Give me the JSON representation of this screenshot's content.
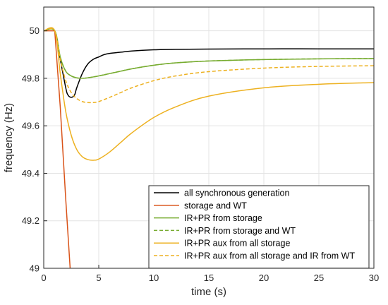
{
  "chart_data": {
    "type": "line",
    "title": "",
    "xlabel": "time (s)",
    "ylabel": "frequency (Hz)",
    "xlim": [
      0,
      30
    ],
    "ylim": [
      49,
      50.1
    ],
    "xticks": [
      0,
      5,
      10,
      15,
      20,
      25,
      30
    ],
    "yticks": [
      49,
      49.2,
      49.4,
      49.6,
      49.8,
      50
    ],
    "xtick_labels": [
      "0",
      "5",
      "10",
      "15",
      "20",
      "25",
      "30"
    ],
    "ytick_labels": [
      "49",
      "49.2",
      "49.4",
      "49.6",
      "49.8",
      "50"
    ],
    "grid": true,
    "legend_position": "bottom-right",
    "series": [
      {
        "name": "all synchronous generation",
        "color": "#000000",
        "dash": "solid",
        "x": [
          0,
          1,
          1.5,
          2,
          2.2,
          2.5,
          2.8,
          3,
          3.5,
          4,
          4.5,
          5,
          5.5,
          6,
          7,
          8,
          10,
          12,
          15,
          20,
          25,
          30
        ],
        "y": [
          50,
          50,
          49.88,
          49.76,
          49.73,
          49.72,
          49.73,
          49.76,
          49.82,
          49.86,
          49.88,
          49.89,
          49.9,
          49.905,
          49.91,
          49.915,
          49.92,
          49.922,
          49.923,
          49.924,
          49.924,
          49.924
        ]
      },
      {
        "name": "storage and WT",
        "color": "#d95319",
        "dash": "solid",
        "x": [
          0,
          1,
          1.5,
          2,
          2.4
        ],
        "y": [
          50,
          50,
          49.68,
          49.29,
          49
        ]
      },
      {
        "name": "IR+PR from storage",
        "color": "#77ac30",
        "dash": "solid",
        "x": [
          0,
          1,
          1.5,
          2,
          2.5,
          3,
          3.5,
          4,
          5,
          6,
          7,
          8,
          10,
          12,
          15,
          20,
          25,
          30
        ],
        "y": [
          50,
          50,
          49.89,
          49.83,
          49.81,
          49.802,
          49.8,
          49.802,
          49.81,
          49.82,
          49.83,
          49.84,
          49.855,
          49.865,
          49.873,
          49.879,
          49.882,
          49.883
        ]
      },
      {
        "name": "IR+PR from storage and WT",
        "color": "#77ac30",
        "dash": "dashed",
        "x": [
          0,
          1,
          1.5,
          2,
          2.5,
          3,
          3.5,
          4,
          5,
          6,
          7,
          8,
          10,
          12,
          15,
          20,
          25,
          30
        ],
        "y": [
          50,
          50,
          49.89,
          49.83,
          49.81,
          49.802,
          49.8,
          49.802,
          49.81,
          49.82,
          49.83,
          49.84,
          49.855,
          49.865,
          49.873,
          49.879,
          49.882,
          49.883
        ]
      },
      {
        "name": "IR+PR aux from all storage",
        "color": "#edb120",
        "dash": "solid",
        "x": [
          0,
          1,
          1.5,
          2,
          2.5,
          3,
          3.5,
          4,
          4.5,
          5,
          6,
          7,
          8,
          10,
          12,
          15,
          20,
          25,
          30
        ],
        "y": [
          50,
          50,
          49.82,
          49.66,
          49.56,
          49.5,
          49.47,
          49.458,
          49.455,
          49.46,
          49.49,
          49.53,
          49.57,
          49.635,
          49.68,
          49.725,
          49.76,
          49.775,
          49.782
        ]
      },
      {
        "name": "IR+PR aux from all storage and IR from WT",
        "color": "#edb120",
        "dash": "dashed",
        "x": [
          0,
          1,
          1.5,
          2,
          2.5,
          3,
          3.5,
          4,
          4.5,
          5,
          6,
          7,
          8,
          10,
          12,
          15,
          20,
          25,
          30
        ],
        "y": [
          50,
          50,
          49.88,
          49.79,
          49.74,
          49.715,
          49.702,
          49.698,
          49.698,
          49.702,
          49.72,
          49.74,
          49.76,
          49.79,
          49.81,
          49.828,
          49.843,
          49.85,
          49.853
        ]
      }
    ]
  }
}
